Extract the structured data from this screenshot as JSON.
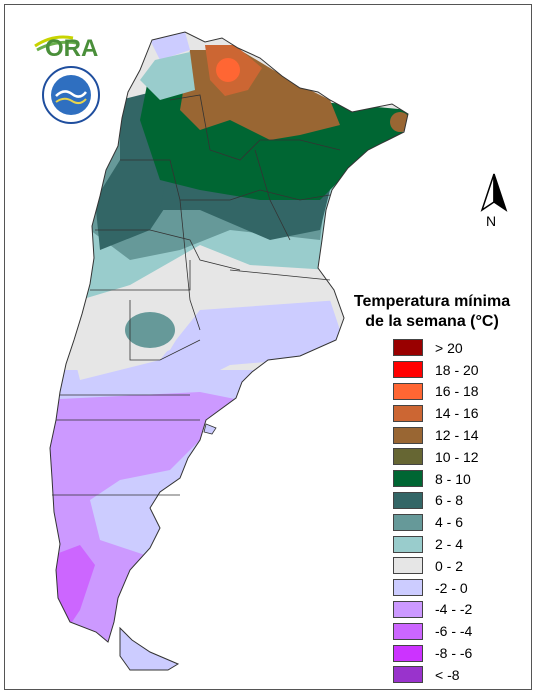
{
  "logo": {
    "ora_text": "ORA"
  },
  "north_label": "N",
  "legend": {
    "title_line1": "Temperatura mínima",
    "title_line2": "de la semana (°C)",
    "items": [
      {
        "label": "> 20",
        "color": "#990000"
      },
      {
        "label": "18 - 20",
        "color": "#ff0000"
      },
      {
        "label": "16 - 18",
        "color": "#ff6633"
      },
      {
        "label": "14 - 16",
        "color": "#cc6633"
      },
      {
        "label": "12 - 14",
        "color": "#996633"
      },
      {
        "label": "10 - 12",
        "color": "#666633"
      },
      {
        "label": "8 - 10",
        "color": "#006633"
      },
      {
        "label": "6 - 8",
        "color": "#336666"
      },
      {
        "label": "4 - 6",
        "color": "#669999"
      },
      {
        "label": "2 - 4",
        "color": "#99cccc"
      },
      {
        "label": "0 - 2",
        "color": "#e6e6e6"
      },
      {
        "label": "-2 - 0",
        "color": "#ccccff"
      },
      {
        "label": "-4 - -2",
        "color": "#cc99ff"
      },
      {
        "label": "-6 - -4",
        "color": "#cc66ff"
      },
      {
        "label": "-8 - -6",
        "color": "#cc33ff"
      },
      {
        "label": "< -8",
        "color": "#9933cc"
      }
    ]
  }
}
